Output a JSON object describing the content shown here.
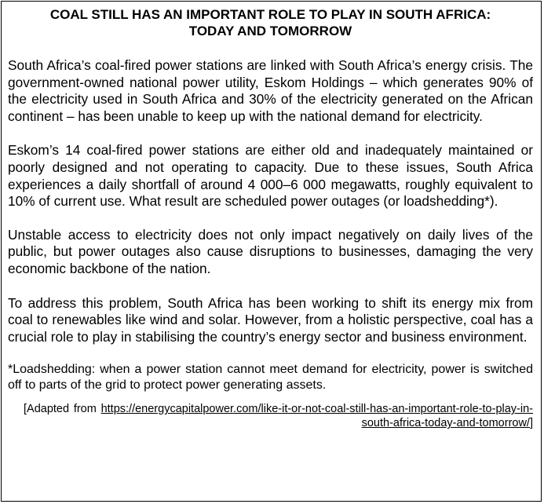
{
  "document": {
    "title_line1": "COAL STILL HAS AN IMPORTANT ROLE TO PLAY IN SOUTH AFRICA:",
    "title_line2": "TODAY AND TOMORROW",
    "paragraphs": [
      "South Africa’s coal-fired power stations are linked with South Africa’s energy crisis. The government-owned national power utility, Eskom Holdings – which generates 90% of the electricity used in South Africa and 30% of the electricity generated on the African continent – has been unable to keep up with the national demand for electricity.",
      "Eskom’s 14 coal-fired power stations are either old and inadequately maintained or poorly designed and not operating to capacity. Due to these issues, South Africa experiences a daily shortfall of around 4 000–6 000 megawatts, roughly equivalent to 10% of current use. What result are scheduled power outages (or loadshedding*).",
      "Unstable access to electricity does not only impact negatively on daily lives of the public, but power outages also cause disruptions to businesses, damaging the very economic backbone of the nation.",
      "To address this problem, South Africa has been working to shift its energy mix from coal to renewables like wind and solar. However, from a holistic perspective, coal has a crucial role to play in stabilising the country’s energy sector and business environment."
    ],
    "footnote": "*Loadshedding: when a power station cannot meet demand for electricity, power is switched off to parts of the grid to protect power generating assets.",
    "source_prefix": "[Adapted from ",
    "source_url": "https://energycapitalpower.com/like-it-or-not-coal-still-has-an-important-role-to-play-in-south-africa-today-and-tomorrow/",
    "source_suffix": "]"
  }
}
